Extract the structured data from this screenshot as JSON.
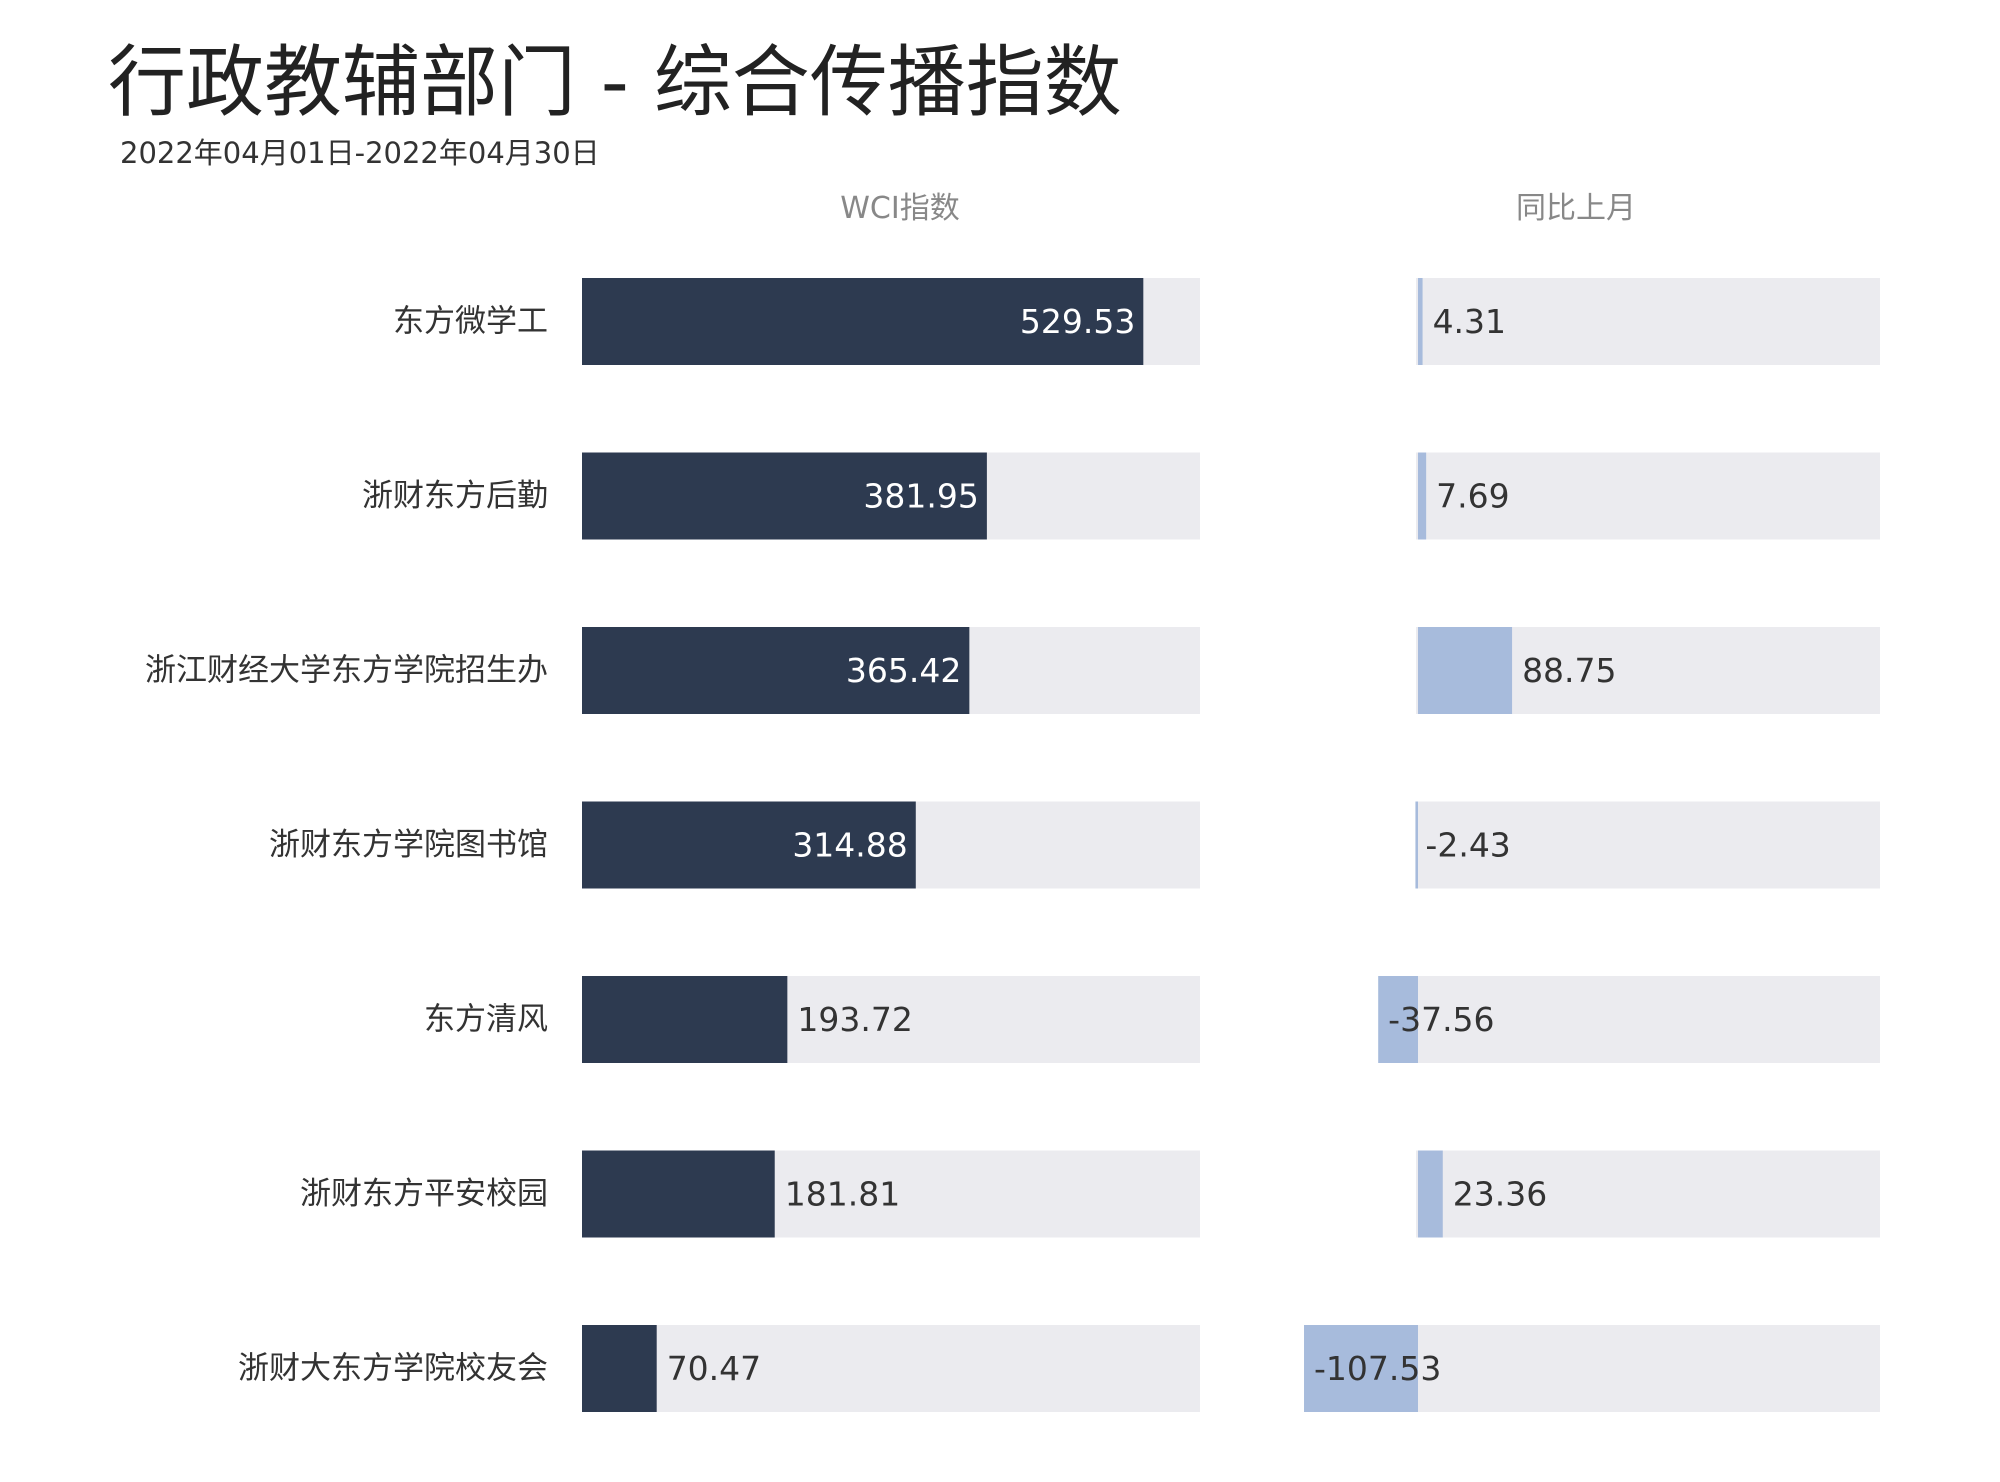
{
  "title": "行政教辅部门 - 综合传播指数",
  "subtitle": "2022年04月01日-2022年04月30日",
  "colors": {
    "wci_bar": "#2d3a50",
    "mom_bar": "#a7bbdc",
    "track": "#ebebef",
    "header_text": "#888888",
    "label_text": "#333333"
  },
  "chart_data": [
    {
      "type": "bar",
      "orientation": "horizontal",
      "column_header": "WCI指数",
      "categories": [
        "东方微学工",
        "浙财东方后勤",
        "浙江财经大学东方学院招生办",
        "浙财东方学院图书馆",
        "东方清风",
        "浙财东方平安校园",
        "浙财大东方学院校友会"
      ],
      "values": [
        529.53,
        381.95,
        365.42,
        314.88,
        193.72,
        181.81,
        70.47
      ],
      "value_labels": [
        "529.53",
        "381.95",
        "365.42",
        "314.88",
        "193.72",
        "181.81",
        "70.47"
      ],
      "xlim": [
        0,
        583
      ],
      "grid": false,
      "legend": "none"
    },
    {
      "type": "bar",
      "orientation": "horizontal",
      "column_header": "同比上月",
      "categories": [
        "东方微学工",
        "浙财东方后勤",
        "浙江财经大学东方学院招生办",
        "浙财东方学院图书馆",
        "东方清风",
        "浙财东方平安校园",
        "浙财大东方学院校友会"
      ],
      "values": [
        4.31,
        7.69,
        88.75,
        -2.43,
        -37.56,
        23.36,
        -107.53
      ],
      "value_labels": [
        "4.31",
        "7.69",
        "88.75",
        "-2.43",
        "-37.56",
        "23.36",
        "-107.53"
      ],
      "xlim": [
        0,
        583
      ],
      "grid": false,
      "legend": "none"
    }
  ]
}
